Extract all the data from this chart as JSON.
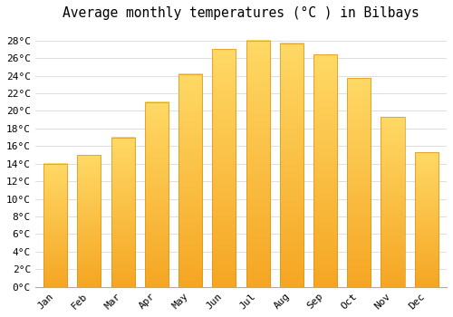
{
  "title": "Average monthly temperatures (°C ) in Bilbays",
  "months": [
    "Jan",
    "Feb",
    "Mar",
    "Apr",
    "May",
    "Jun",
    "Jul",
    "Aug",
    "Sep",
    "Oct",
    "Nov",
    "Dec"
  ],
  "values": [
    14,
    15,
    17,
    21,
    24.2,
    27,
    28,
    27.7,
    26.4,
    23.7,
    19.3,
    15.3
  ],
  "bar_color_bottom": "#F5A623",
  "bar_color_top": "#FFD966",
  "background_color": "#FFFFFF",
  "grid_color": "#D8D8D8",
  "ytick_labels": [
    "0°C",
    "2°C",
    "4°C",
    "6°C",
    "8°C",
    "10°C",
    "12°C",
    "14°C",
    "16°C",
    "18°C",
    "20°C",
    "22°C",
    "24°C",
    "26°C",
    "28°C"
  ],
  "ytick_values": [
    0,
    2,
    4,
    6,
    8,
    10,
    12,
    14,
    16,
    18,
    20,
    22,
    24,
    26,
    28
  ],
  "ylim": [
    0,
    29.5
  ],
  "title_fontsize": 10.5,
  "tick_fontsize": 8,
  "font_family": "monospace"
}
